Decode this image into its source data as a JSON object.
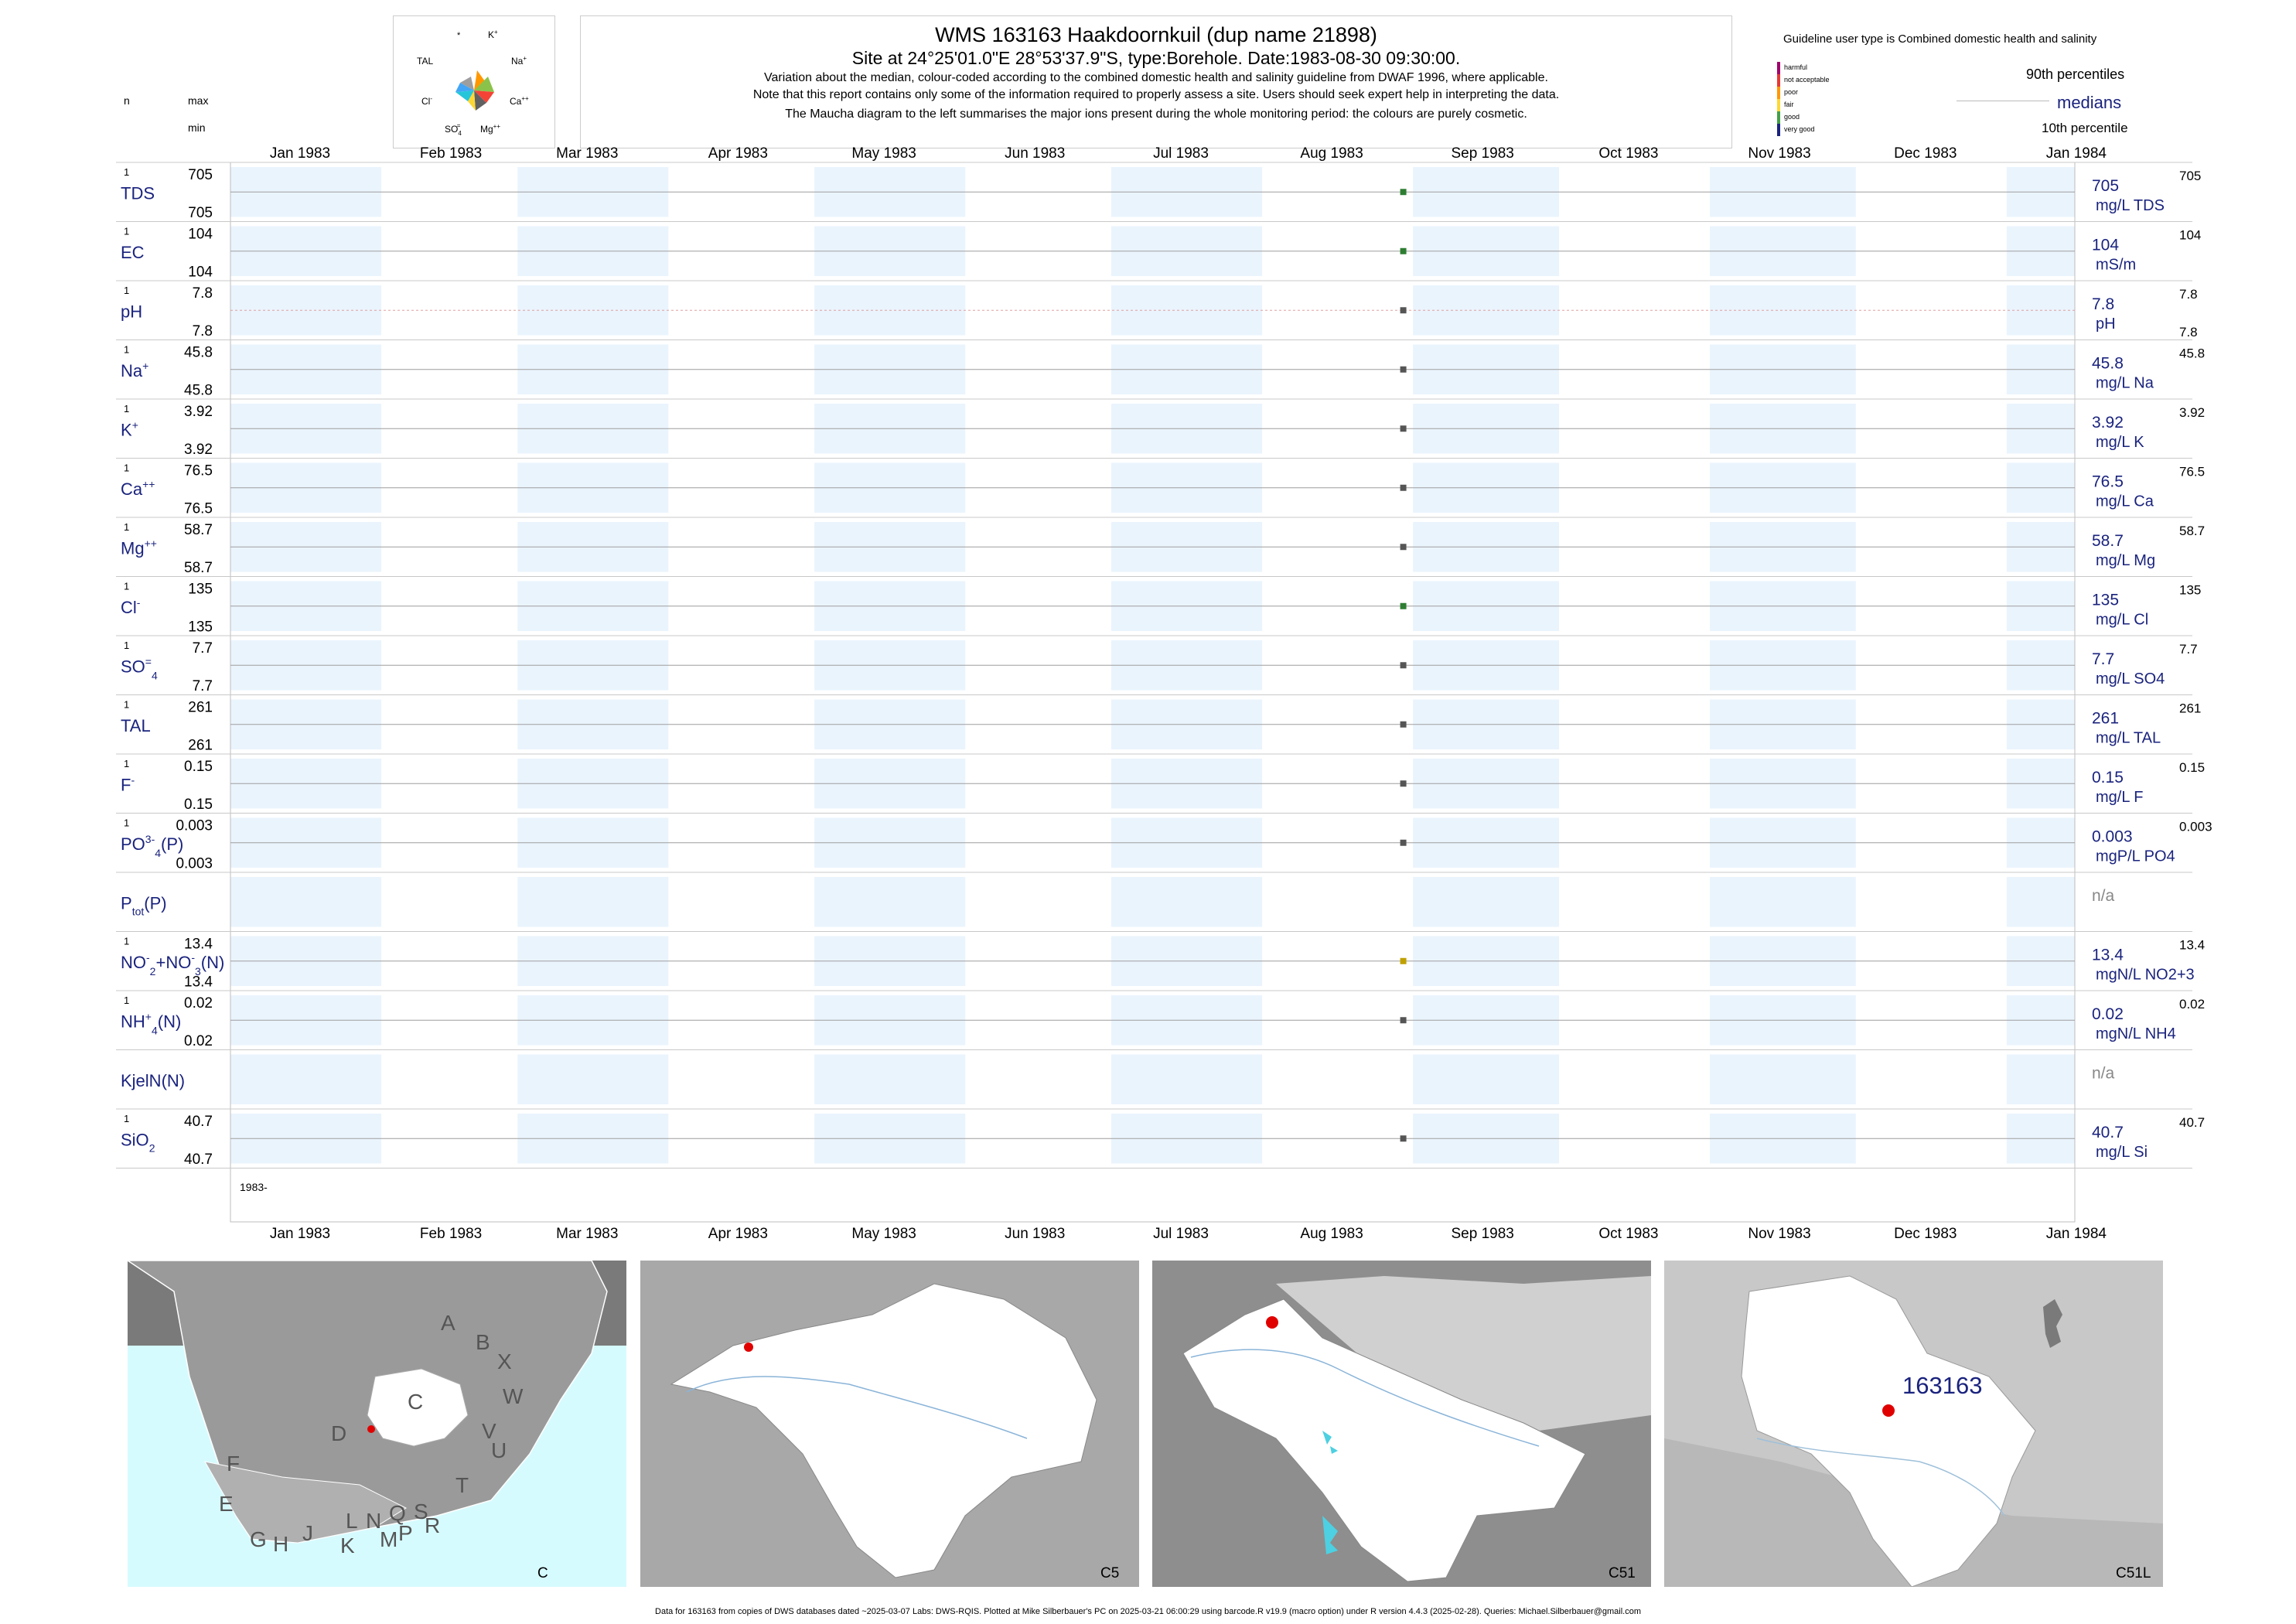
{
  "header": {
    "title": "WMS 163163  Haakdoornkuil (dup name 21898)",
    "site_line": "Site at 24°25'01.0\"E 28°53'37.9\"S, type:Borehole. Date:1983-08-30 09:30:00.",
    "note1": "Variation about the median,  colour-coded according to the combined domestic health and salinity guideline from DWAF 1996, where applicable.",
    "note2": "Note that this report contains only some of the information required to properly assess a site. Users should seek expert help in interpreting the data.",
    "note3": "The Maucha diagram to the left summarises the major ions present during the whole monitoring period: the colours are purely cosmetic."
  },
  "maucha": {
    "labels": [
      "*",
      "K+",
      "Na+",
      "Ca++",
      "Mg++",
      "SO4=",
      "Cl-",
      "TAL"
    ],
    "label_text": {
      "star": "*",
      "k": "K",
      "na": "Na",
      "ca": "Ca",
      "mg": "Mg",
      "so4": "SO",
      "cl": "Cl",
      "tal": "TAL"
    },
    "colors": [
      "#f44336",
      "#ff9800",
      "#fdd835",
      "#8bc34a",
      "#26c6da",
      "#42a5f5",
      "#9e9e9e",
      "#757575"
    ]
  },
  "legend": {
    "title": "Guideline user type is Combined domestic health and salinity",
    "levels": [
      {
        "label": "harmful",
        "color": "#a0006e"
      },
      {
        "label": "not acceptable",
        "color": "#e53935"
      },
      {
        "label": "poor",
        "color": "#ff9800"
      },
      {
        "label": "fair",
        "color": "#fdd835"
      },
      {
        "label": "good",
        "color": "#43a047"
      },
      {
        "label": "very good",
        "color": "#1a237e"
      }
    ],
    "pct90": "90th percentiles",
    "medians": "medians",
    "pct10": "10th percentile"
  },
  "column_headers": {
    "n": "n",
    "max": "max",
    "min": "min"
  },
  "chart_data": {
    "type": "line",
    "x_range": [
      "1983-01-01",
      "1984-01-15"
    ],
    "month_labels": [
      "Jan 1983",
      "Feb 1983",
      "Mar 1983",
      "Apr 1983",
      "May 1983",
      "Jun 1983",
      "Jul 1983",
      "Aug 1983",
      "Sep 1983",
      "Oct 1983",
      "Nov 1983",
      "Dec 1983",
      "Jan 1984"
    ],
    "year_label": "1983-",
    "sample_date": "1983-08-30",
    "panels": [
      {
        "name": "TDS",
        "sup": "",
        "sub": "",
        "n": "1",
        "max": "705",
        "min": "705",
        "median": "705",
        "unit": "mg/L TDS",
        "value": 705,
        "color": "#2e7d32"
      },
      {
        "name": "EC",
        "sup": "",
        "sub": "",
        "n": "1",
        "max": "104",
        "min": "104",
        "median": "104",
        "unit": "mS/m",
        "value": 104,
        "color": "#2e7d32"
      },
      {
        "name": "pH",
        "sup": "",
        "sub": "",
        "n": "1",
        "max": "7.8",
        "min": "7.8",
        "median": "7.8",
        "unit": "pH",
        "value": 7.8,
        "color": "#555555",
        "right_min": "7.8"
      },
      {
        "name": "Na",
        "sup": "+",
        "sub": "",
        "n": "1",
        "max": "45.8",
        "min": "45.8",
        "median": "45.8",
        "unit": "mg/L Na",
        "value": 45.8,
        "color": "#555555"
      },
      {
        "name": "K",
        "sup": "+",
        "sub": "",
        "n": "1",
        "max": "3.92",
        "min": "3.92",
        "median": "3.92",
        "unit": "mg/L K",
        "value": 3.92,
        "color": "#555555"
      },
      {
        "name": "Ca",
        "sup": "++",
        "sub": "",
        "n": "1",
        "max": "76.5",
        "min": "76.5",
        "median": "76.5",
        "unit": "mg/L Ca",
        "value": 76.5,
        "color": "#555555"
      },
      {
        "name": "Mg",
        "sup": "++",
        "sub": "",
        "n": "1",
        "max": "58.7",
        "min": "58.7",
        "median": "58.7",
        "unit": "mg/L Mg",
        "value": 58.7,
        "color": "#555555"
      },
      {
        "name": "Cl",
        "sup": "-",
        "sub": "",
        "n": "1",
        "max": "135",
        "min": "135",
        "median": "135",
        "unit": "mg/L Cl",
        "value": 135,
        "color": "#2e7d32"
      },
      {
        "name": "SO",
        "sup": "=",
        "sub": "4",
        "n": "1",
        "max": "7.7",
        "min": "7.7",
        "median": "7.7",
        "unit": "mg/L SO4",
        "value": 7.7,
        "color": "#555555"
      },
      {
        "name": "TAL",
        "sup": "",
        "sub": "",
        "n": "1",
        "max": "261",
        "min": "261",
        "median": "261",
        "unit": "mg/L TAL",
        "value": 261,
        "color": "#555555"
      },
      {
        "name": "F",
        "sup": "-",
        "sub": "",
        "n": "1",
        "max": "0.15",
        "min": "0.15",
        "median": "0.15",
        "unit": "mg/L F",
        "value": 0.15,
        "color": "#555555"
      },
      {
        "name": "PO",
        "sup": "3-",
        "sub": "4",
        "suffix": "(P)",
        "n": "1",
        "max": "0.003",
        "min": "0.003",
        "median": "0.003",
        "unit": "mgP/L PO4",
        "value": 0.003,
        "color": "#555555"
      },
      {
        "name": "P",
        "sup": "",
        "sub": "tot",
        "suffix": "(P)",
        "n": "",
        "max": "",
        "min": "",
        "median": "n/a",
        "unit": "",
        "value": null,
        "color": "#555555"
      },
      {
        "name": "NO",
        "sup": "-",
        "sub": "2",
        "suffix": "+NO",
        "suffix_sup": "-",
        "suffix_sub": "3",
        "suffix2": "(N)",
        "n": "1",
        "max": "13.4",
        "min": "13.4",
        "median": "13.4",
        "unit": "mgN/L NO2+3",
        "value": 13.4,
        "color": "#c0a000"
      },
      {
        "name": "NH",
        "sup": "+",
        "sub": "4",
        "suffix": "(N)",
        "n": "1",
        "max": "0.02",
        "min": "0.02",
        "median": "0.02",
        "unit": "mgN/L NH4",
        "value": 0.02,
        "color": "#555555"
      },
      {
        "name": "KjelN(N)",
        "sup": "",
        "sub": "",
        "n": "",
        "max": "",
        "min": "",
        "median": "n/a",
        "unit": "",
        "value": null,
        "color": "#555555"
      },
      {
        "name": "SiO",
        "sup": "",
        "sub": "2",
        "n": "1",
        "max": "40.7",
        "min": "40.7",
        "median": "40.7",
        "unit": "mg/L Si",
        "value": 40.7,
        "color": "#555555"
      }
    ]
  },
  "maps": [
    {
      "label": "C",
      "letters": [
        "A",
        "B",
        "X",
        "W",
        "C",
        "V",
        "U",
        "D",
        "F",
        "T",
        "E",
        "L",
        "N",
        "Q",
        "S",
        "R",
        "G",
        "H",
        "J",
        "K",
        "M",
        "P"
      ]
    },
    {
      "label": "C5"
    },
    {
      "label": "C51"
    },
    {
      "label": "C51L",
      "site": "163163"
    }
  ],
  "footer": "Data for 163163 from copies of DWS databases dated ~2025-03-07 Labs: DWS-RQIS. Plotted at Mike Silberbauer's PC on 2025-03-21 06:00:29 using barcode.R v19.9 (macro option) under R version 4.4.3 (2025-02-28). Queries: Michael.Silberbauer@gmail.com"
}
